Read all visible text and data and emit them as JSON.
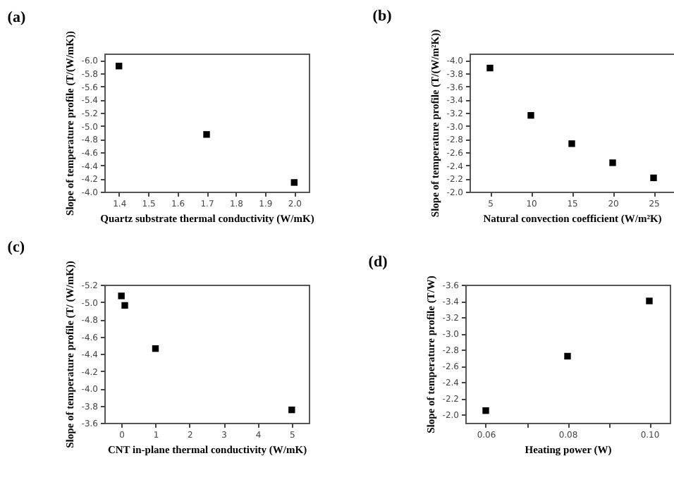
{
  "chart_data": [
    {
      "type": "scatter",
      "title": "(a)",
      "xlabel": "Quartz substrate thermal conductivity (W/mK)",
      "ylabel": "Slope of temperature profile (T/(W/mK))",
      "x": [
        1.4,
        1.7,
        2.0
      ],
      "values": [
        -5.91,
        -4.87,
        -4.14
      ],
      "color": "#000000",
      "marker": "square",
      "xlim": [
        1.35,
        2.05
      ],
      "xticks": [
        {
          "value": 1.4,
          "label": "1.4"
        },
        {
          "value": 1.5,
          "label": "1.5"
        },
        {
          "value": 1.6,
          "label": "1.6"
        },
        {
          "value": 1.7,
          "label": "1.7"
        },
        {
          "value": 1.8,
          "label": "1.8"
        },
        {
          "value": 1.9,
          "label": "1.9"
        },
        {
          "value": 2,
          "label": "2.0"
        }
      ],
      "ylim": [
        -4.0,
        -6.1
      ],
      "yticks": [
        {
          "value": -4,
          "label": "-4.0"
        },
        {
          "value": -4.2,
          "label": "-4.2"
        },
        {
          "value": -4.4,
          "label": "-4.4"
        },
        {
          "value": -4.6,
          "label": "-4.6"
        },
        {
          "value": -4.8,
          "label": "-4.8"
        },
        {
          "value": -5,
          "label": "-5.0"
        },
        {
          "value": -5.2,
          "label": "-5.2"
        },
        {
          "value": -5.4,
          "label": "-5.4"
        },
        {
          "value": -5.6,
          "label": "-5.6"
        },
        {
          "value": -5.8,
          "label": "-5.8"
        },
        {
          "value": -6,
          "label": "-6.0"
        }
      ]
    },
    {
      "type": "scatter",
      "title": "(b)",
      "xlabel": "Natural convection coefficient (W/m²K)",
      "ylabel": "Slope of temperature profile (T/(W/m²K))",
      "x": [
        5,
        10,
        15,
        20,
        25
      ],
      "values": [
        -3.88,
        -3.16,
        -2.73,
        -2.44,
        -2.21
      ],
      "color": "#000000",
      "marker": "square",
      "xlim": [
        2.5,
        27.5
      ],
      "xticks": [
        5,
        10,
        15,
        20,
        25
      ],
      "ylim": [
        -2.0,
        -4.1
      ],
      "yticks": [
        {
          "value": -2,
          "label": "-2.0"
        },
        {
          "value": -2.2,
          "label": "-2.2"
        },
        {
          "value": -2.4,
          "label": "-2.4"
        },
        {
          "value": -2.6,
          "label": "-2.6"
        },
        {
          "value": -2.8,
          "label": "-2.8"
        },
        {
          "value": -3,
          "label": "-3.0"
        },
        {
          "value": -3.2,
          "label": "-3.2"
        },
        {
          "value": -3.4,
          "label": "-3.4"
        },
        {
          "value": -3.6,
          "label": "-3.6"
        },
        {
          "value": -3.8,
          "label": "-3.8"
        },
        {
          "value": -4,
          "label": "-4.0"
        }
      ]
    },
    {
      "type": "scatter",
      "title": "(c)",
      "xlabel": "CNT in-plane thermal conductivity (W/mK)",
      "ylabel": "Slope of temperature profile (T/ (W/mK))",
      "x": [
        0,
        0.1,
        1,
        5
      ],
      "values": [
        -5.07,
        -4.96,
        -4.46,
        -3.75
      ],
      "color": "#000000",
      "marker": "square",
      "xlim": [
        -0.5,
        5.5
      ],
      "xticks": [
        0,
        1,
        2,
        3,
        4,
        5
      ],
      "ylim": [
        -3.6,
        -5.2
      ],
      "yticks": [
        {
          "value": -3.6,
          "label": "-3.6"
        },
        {
          "value": -3.8,
          "label": "-3.8"
        },
        {
          "value": -4,
          "label": "-4.0"
        },
        {
          "value": -4.2,
          "label": "-4.2"
        },
        {
          "value": -4.4,
          "label": "-4.4"
        },
        {
          "value": -4.6,
          "label": "-4.6"
        },
        {
          "value": -4.8,
          "label": "-4.8"
        },
        {
          "value": -5,
          "label": "-5.0"
        },
        {
          "value": -5.2,
          "label": "-5.2"
        }
      ]
    },
    {
      "type": "scatter",
      "title": "(d)",
      "xlabel": "Heating power (W)",
      "ylabel": "Slope of temperature profile (T/W)",
      "x": [
        0.06,
        0.08,
        0.1
      ],
      "values": [
        -2.05,
        -2.72,
        -3.4
      ],
      "color": "#000000",
      "marker": "square",
      "xlim": [
        0.055,
        0.105
      ],
      "xticks": [
        {
          "value": 0.06,
          "label": "0.06"
        },
        {
          "value": 0.07,
          "label": null
        },
        {
          "value": 0.08,
          "label": "0.08"
        },
        {
          "value": 0.09,
          "label": null
        },
        {
          "value": 0.1,
          "label": "0.10"
        }
      ],
      "ylim": [
        -1.9,
        -3.6
      ],
      "yticks": [
        {
          "value": -2,
          "label": "-2.0"
        },
        {
          "value": -2.2,
          "label": "-2.2"
        },
        {
          "value": -2.4,
          "label": "-2.4"
        },
        {
          "value": -2.6,
          "label": "-2.6"
        },
        {
          "value": -2.8,
          "label": "-2.8"
        },
        {
          "value": -3,
          "label": "-3.0"
        },
        {
          "value": -3.2,
          "label": "-3.2"
        },
        {
          "value": -3.4,
          "label": "-3.4"
        },
        {
          "value": -3.6,
          "label": "-3.6"
        }
      ]
    }
  ]
}
